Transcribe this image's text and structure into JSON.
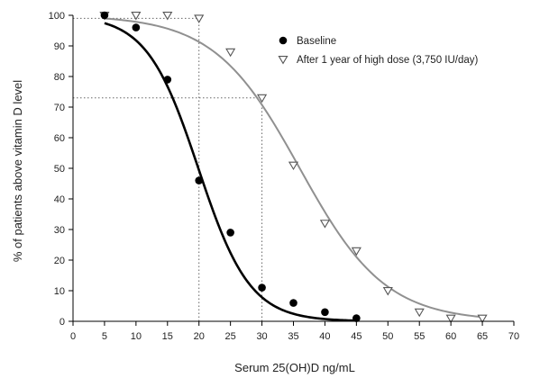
{
  "chart_data": {
    "type": "scatter",
    "xlabel": "Serum 25(OH)D ng/mL",
    "ylabel": "% of patients above vitamin D level",
    "xlim": [
      0,
      70
    ],
    "ylim": [
      0,
      100
    ],
    "xticks": [
      0,
      5,
      10,
      15,
      20,
      25,
      30,
      35,
      40,
      45,
      50,
      55,
      60,
      65,
      70
    ],
    "yticks": [
      0,
      10,
      20,
      30,
      40,
      50,
      60,
      70,
      80,
      90,
      100
    ],
    "grid": false,
    "legend_position": "top-right",
    "series": [
      {
        "name": "Baseline",
        "marker": "circle",
        "marker_color": "#000000",
        "curve_color": "#000000",
        "points": [
          {
            "x": 5,
            "y": 100
          },
          {
            "x": 10,
            "y": 96
          },
          {
            "x": 15,
            "y": 79
          },
          {
            "x": 20,
            "y": 46
          },
          {
            "x": 25,
            "y": 29
          },
          {
            "x": 30,
            "y": 11
          },
          {
            "x": 35,
            "y": 6
          },
          {
            "x": 40,
            "y": 3
          },
          {
            "x": 45,
            "y": 1
          }
        ],
        "fit": {
          "x50": 19.9,
          "slope": 4.1
        }
      },
      {
        "name": "After 1 year of high dose (3,750 IU/day)",
        "marker": "triangle-down",
        "marker_color": "#ffffff",
        "marker_stroke": "#555555",
        "curve_color": "#909090",
        "points": [
          {
            "x": 5,
            "y": 100
          },
          {
            "x": 10,
            "y": 100
          },
          {
            "x": 15,
            "y": 100
          },
          {
            "x": 20,
            "y": 99
          },
          {
            "x": 25,
            "y": 88
          },
          {
            "x": 30,
            "y": 73
          },
          {
            "x": 35,
            "y": 51
          },
          {
            "x": 40,
            "y": 32
          },
          {
            "x": 45,
            "y": 23
          },
          {
            "x": 50,
            "y": 10
          },
          {
            "x": 55,
            "y": 3
          },
          {
            "x": 60,
            "y": 1
          },
          {
            "x": 65,
            "y": 1
          }
        ],
        "fit": {
          "x50": 36,
          "slope": 6.8
        }
      }
    ],
    "reference_lines": [
      {
        "axis": "x",
        "value": 20,
        "from": 0,
        "to": 100
      },
      {
        "axis": "x",
        "value": 30,
        "from": 0,
        "to": 73
      },
      {
        "axis": "y",
        "value": 73,
        "from": 0,
        "to": 30
      },
      {
        "axis": "y",
        "value": 99,
        "from": 0,
        "to": 20
      }
    ]
  }
}
